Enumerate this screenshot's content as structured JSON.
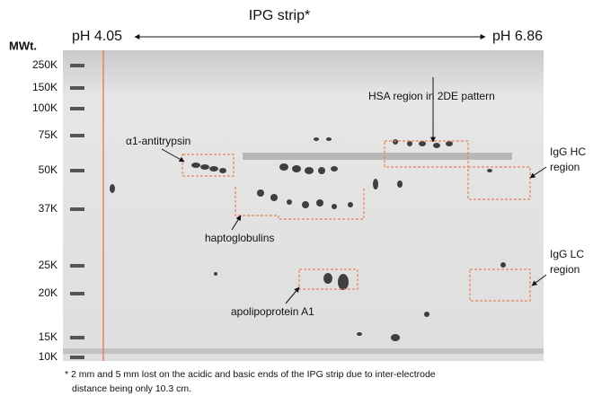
{
  "header": {
    "title": "IPG strip*",
    "ph_left": "pH 4.05",
    "ph_right": "pH 6.86",
    "mw_title": "MWt."
  },
  "mw_labels": [
    "250K",
    "150K",
    "100K",
    "75K",
    "50K",
    "37K",
    "25K",
    "20K",
    "15K",
    "10K"
  ],
  "annotations": {
    "antitrypsin": "α1-antitrypsin",
    "haptoglobulins": "haptoglobulins",
    "apolipoprotein": "apolipoprotein A1",
    "hsa": "HSA region in 2DE pattern",
    "igg_hc": [
      "IgG HC",
      "region"
    ],
    "igg_lc": [
      "IgG LC",
      "region"
    ]
  },
  "footnote": [
    "* 2 mm and 5 mm lost on the acidic and basic ends of the IPG strip due to inter-electrode",
    "distance being only 10.3 cm."
  ]
}
